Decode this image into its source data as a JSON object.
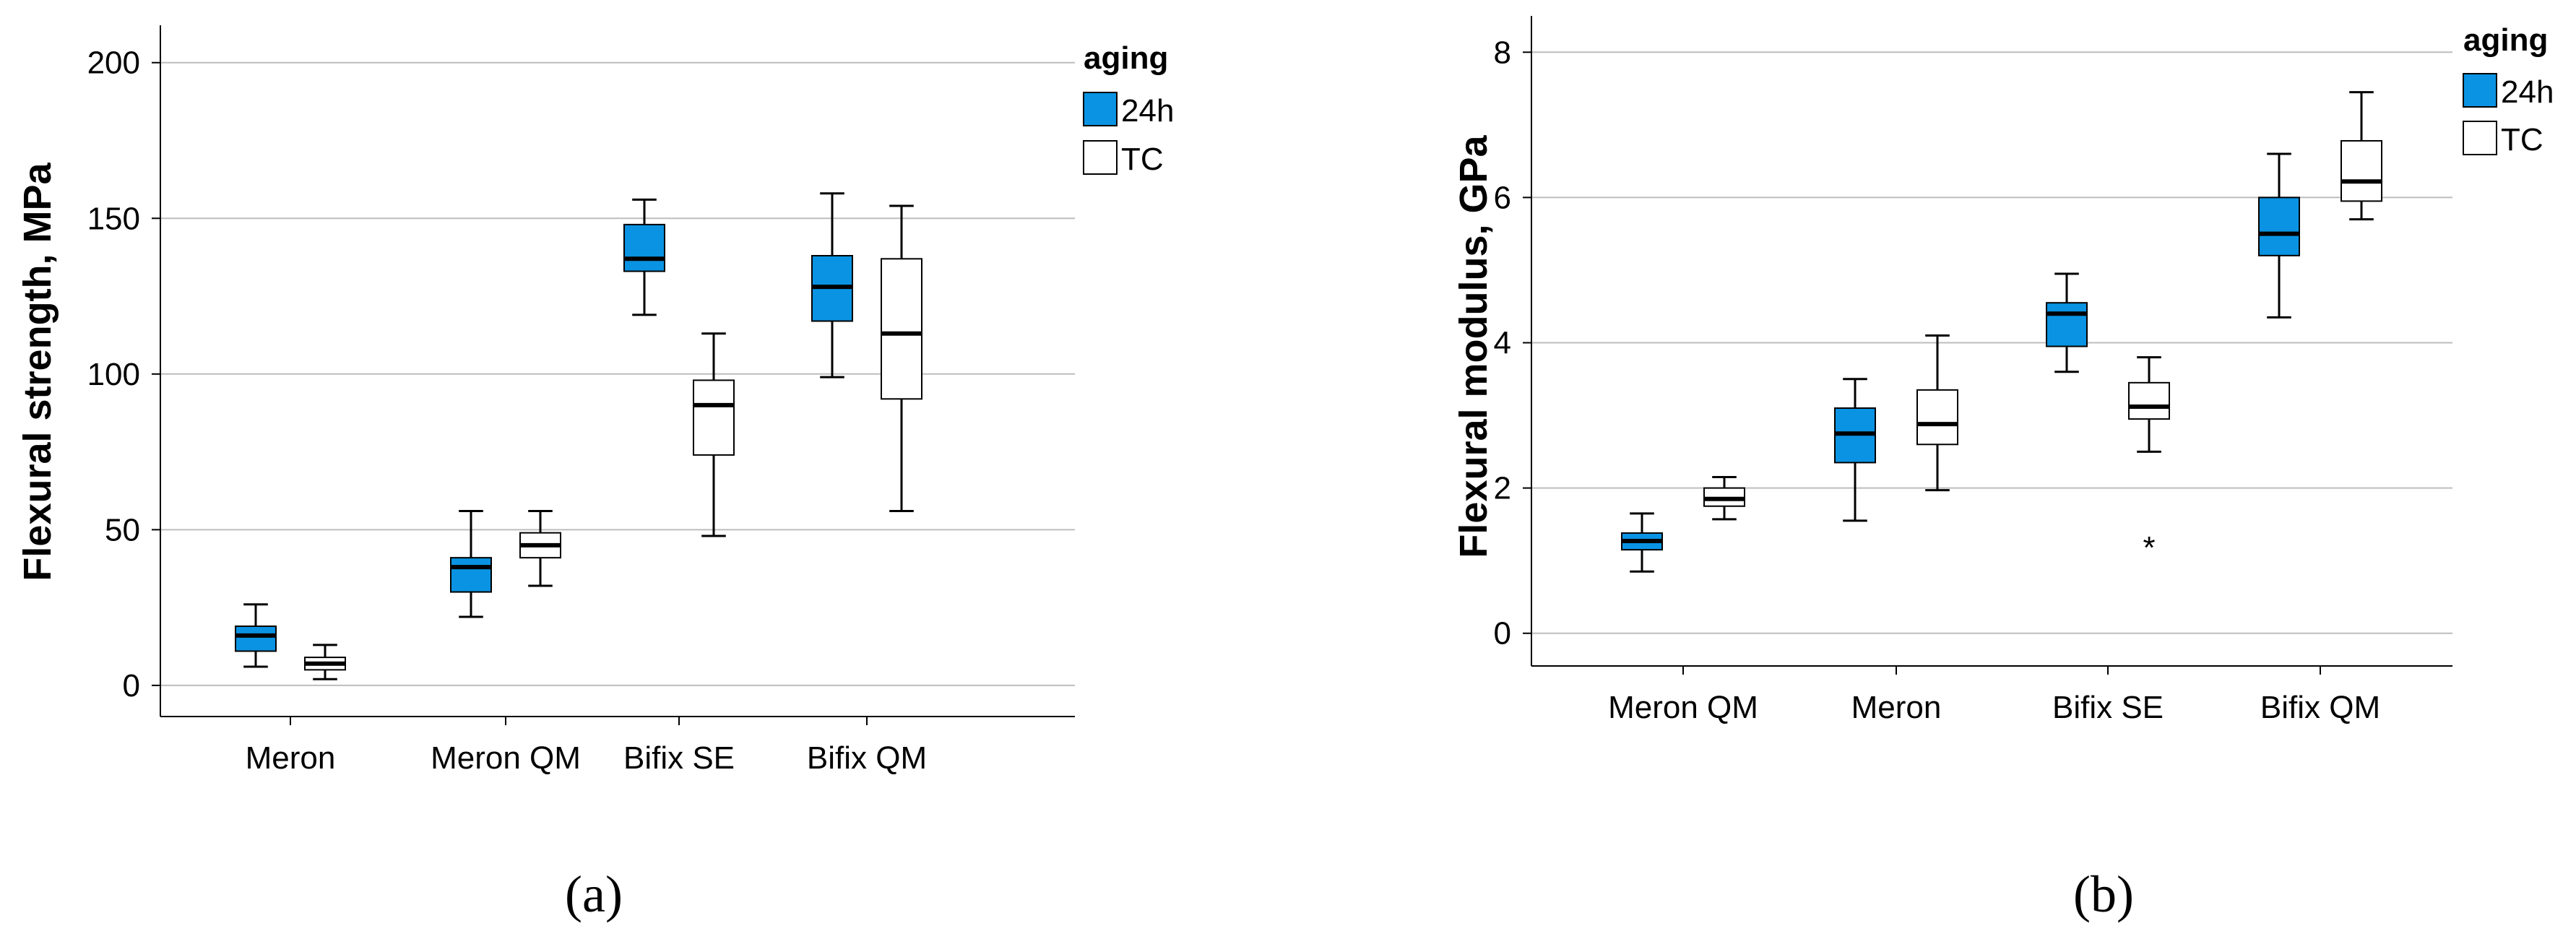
{
  "colors": {
    "h24": "#0a93e2",
    "tc": "#ffffff",
    "grid": "#bdbdbd",
    "axis": "#000000"
  },
  "chart_data": [
    {
      "type": "boxplot",
      "panel_label": "(a)",
      "ylabel": "Flexural strength, MPa",
      "xlabel": "",
      "ylim": [
        -10,
        212
      ],
      "yticks": [
        0,
        50,
        100,
        150,
        200
      ],
      "grid": true,
      "categories": [
        "Meron",
        "Meron QM",
        "Bifix SE",
        "Bifix QM"
      ],
      "legend": {
        "title": "aging",
        "entries": [
          "24h",
          "TC"
        ],
        "placement": "right"
      },
      "series": [
        {
          "name": "24h",
          "boxes": [
            {
              "min": 6,
              "q1": 11,
              "median": 16,
              "q3": 19,
              "max": 26,
              "outliers": []
            },
            {
              "min": 22,
              "q1": 30,
              "median": 38,
              "q3": 41,
              "max": 56,
              "outliers": []
            },
            {
              "min": 119,
              "q1": 133,
              "median": 137,
              "q3": 148,
              "max": 156,
              "outliers": []
            },
            {
              "min": 99,
              "q1": 117,
              "median": 128,
              "q3": 138,
              "max": 158,
              "outliers": []
            }
          ]
        },
        {
          "name": "TC",
          "boxes": [
            {
              "min": 2,
              "q1": 5,
              "median": 7,
              "q3": 9,
              "max": 13,
              "outliers": []
            },
            {
              "min": 32,
              "q1": 41,
              "median": 45,
              "q3": 49,
              "max": 56,
              "outliers": []
            },
            {
              "min": 48,
              "q1": 74,
              "median": 90,
              "q3": 98,
              "max": 113,
              "outliers": []
            },
            {
              "min": 56,
              "q1": 92,
              "median": 113,
              "q3": 137,
              "max": 154,
              "outliers": []
            }
          ]
        }
      ]
    },
    {
      "type": "boxplot",
      "panel_label": "(b)",
      "ylabel": "Flexural modulus, GPa",
      "xlabel": "",
      "ylim": [
        -0.45,
        8.5
      ],
      "yticks": [
        0,
        2,
        4,
        6,
        8
      ],
      "grid": true,
      "categories": [
        "Meron QM",
        "Meron",
        "Bifix SE",
        "Bifix QM"
      ],
      "legend": {
        "title": "aging",
        "entries": [
          "24h",
          "TC"
        ],
        "placement": "right"
      },
      "series": [
        {
          "name": "24h",
          "boxes": [
            {
              "min": 0.85,
              "q1": 1.15,
              "median": 1.27,
              "q3": 1.38,
              "max": 1.65,
              "outliers": []
            },
            {
              "min": 1.55,
              "q1": 2.35,
              "median": 2.75,
              "q3": 3.1,
              "max": 3.5,
              "outliers": []
            },
            {
              "min": 3.6,
              "q1": 3.95,
              "median": 4.4,
              "q3": 4.55,
              "max": 4.95,
              "outliers": []
            },
            {
              "min": 4.35,
              "q1": 5.2,
              "median": 5.5,
              "q3": 6.0,
              "max": 6.6,
              "outliers": []
            }
          ]
        },
        {
          "name": "TC",
          "boxes": [
            {
              "min": 1.57,
              "q1": 1.75,
              "median": 1.85,
              "q3": 2.0,
              "max": 2.15,
              "outliers": []
            },
            {
              "min": 1.97,
              "q1": 2.6,
              "median": 2.88,
              "q3": 3.35,
              "max": 4.1,
              "outliers": []
            },
            {
              "min": 2.5,
              "q1": 2.95,
              "median": 3.12,
              "q3": 3.45,
              "max": 3.8,
              "outliers": [
                1.25
              ]
            },
            {
              "min": 5.7,
              "q1": 5.95,
              "median": 6.22,
              "q3": 6.78,
              "max": 7.45,
              "outliers": []
            }
          ]
        }
      ]
    }
  ]
}
